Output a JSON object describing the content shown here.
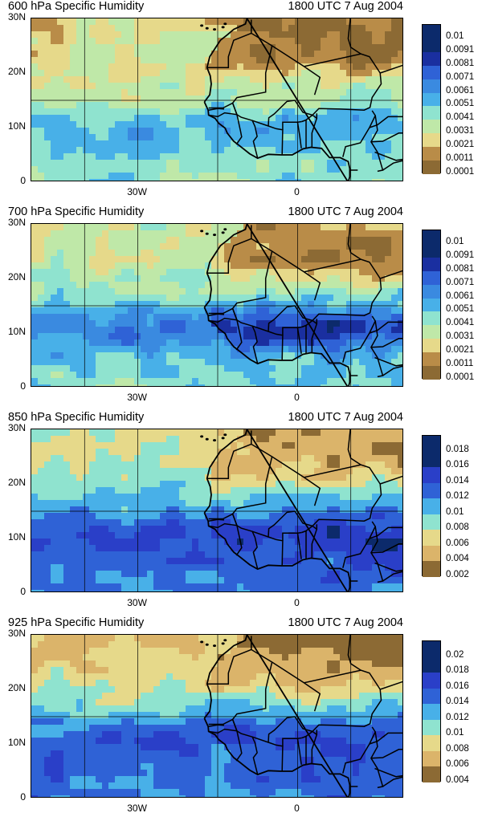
{
  "chart_data": [
    {
      "type": "heatmap",
      "title": "600 hPa Specific Humidity",
      "subtitle": "1800 UTC 7 Aug 2004",
      "y_ticks": [
        "30N",
        "20N",
        "10N",
        "0"
      ],
      "x_ticks": [
        "30W",
        "0"
      ],
      "colorbar_labels": [
        "0.01",
        "0.0091",
        "0.0081",
        "0.0071",
        "0.0061",
        "0.0051",
        "0.0041",
        "0.0031",
        "0.0021",
        "0.0011",
        "0.0001"
      ],
      "colorbar_range": [
        0.0001,
        0.01
      ],
      "ylim": [
        0,
        30
      ],
      "xlim": [
        -50,
        20
      ],
      "field": {
        "dry_north": 0.0025,
        "moist_south": 0.0046,
        "moist_band_lat": 10,
        "moist_band_strength": 0.0012
      }
    },
    {
      "type": "heatmap",
      "title": "700 hPa Specific Humidity",
      "subtitle": "1800 UTC 7 Aug 2004",
      "y_ticks": [
        "30N",
        "20N",
        "10N",
        "0"
      ],
      "x_ticks": [
        "30W",
        "0"
      ],
      "colorbar_labels": [
        "0.01",
        "0.0091",
        "0.0081",
        "0.0071",
        "0.0061",
        "0.0051",
        "0.0041",
        "0.0031",
        "0.0021",
        "0.0011",
        "0.0001"
      ],
      "colorbar_range": [
        0.0001,
        0.01
      ],
      "ylim": [
        0,
        30
      ],
      "xlim": [
        -50,
        20
      ],
      "field": {
        "dry_north": 0.0032,
        "moist_south": 0.0048,
        "moist_band_lat": 11,
        "moist_band_strength": 0.0035
      }
    },
    {
      "type": "heatmap",
      "title": "850 hPa Specific Humidity",
      "subtitle": "1800 UTC 7 Aug 2004",
      "y_ticks": [
        "30N",
        "20N",
        "10N",
        "0"
      ],
      "x_ticks": [
        "30W",
        "0"
      ],
      "colorbar_labels": [
        "0.018",
        "0.016",
        "0.014",
        "0.012",
        "0.01",
        "0.008",
        "0.006",
        "0.004",
        "0.002"
      ],
      "colorbar_range": [
        0.002,
        0.018
      ],
      "ylim": [
        0,
        30
      ],
      "xlim": [
        -50,
        20
      ],
      "field": {
        "dry_north": 0.0075,
        "moist_south": 0.0125,
        "moist_band_lat": 11,
        "moist_band_strength": 0.0035
      }
    },
    {
      "type": "heatmap",
      "title": "925 hPa Specific Humidity",
      "subtitle": "1800 UTC 7 Aug 2004",
      "y_ticks": [
        "30N",
        "20N",
        "10N",
        "0"
      ],
      "x_ticks": [
        "30W",
        "0"
      ],
      "colorbar_labels": [
        "0.02",
        "0.018",
        "0.016",
        "0.014",
        "0.012",
        "0.01",
        "0.008",
        "0.006",
        "0.004"
      ],
      "colorbar_range": [
        0.004,
        0.02
      ],
      "ylim": [
        0,
        30
      ],
      "xlim": [
        -50,
        20
      ],
      "field": {
        "dry_north": 0.008,
        "moist_south": 0.0145,
        "moist_band_lat": 11,
        "moist_band_strength": 0.003
      }
    }
  ],
  "palette": [
    "#0c2a6b",
    "#1a2fa0",
    "#2a3fc8",
    "#2f62d6",
    "#3a8ae0",
    "#48b0e8",
    "#5fd0e6",
    "#8fe3cf",
    "#bfe8a8",
    "#e6d98a",
    "#dbb46a",
    "#b98c48",
    "#8c6a34"
  ]
}
